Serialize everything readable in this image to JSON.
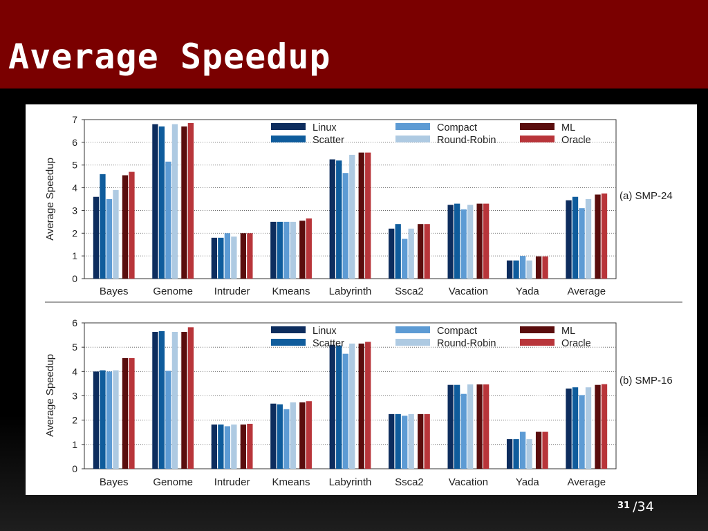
{
  "slide": {
    "title": "Average Speedup",
    "page_current": "31",
    "page_separator": "/",
    "page_total": "34"
  },
  "colors": {
    "header_bg": "#7a0000",
    "Linux": "#0d2d5e",
    "Scatter": "#0f5c9c",
    "Compact": "#5d9bd4",
    "Round-Robin": "#aecae2",
    "ML": "#5a0d0d",
    "Oracle": "#b8353a"
  },
  "chart_data": [
    {
      "type": "bar",
      "panel_label": "(a) SMP-24",
      "ylabel": "Average Speedup",
      "ylim": [
        0,
        7
      ],
      "yticks": [
        0,
        1,
        2,
        3,
        4,
        5,
        6,
        7
      ],
      "grid": "horizontal dotted",
      "legend_position": "top-center",
      "categories": [
        "Bayes",
        "Genome",
        "Intruder",
        "Kmeans",
        "Labyrinth",
        "Ssca2",
        "Vacation",
        "Yada",
        "Average"
      ],
      "series": [
        {
          "name": "Linux",
          "values": [
            3.6,
            6.8,
            1.8,
            2.5,
            5.25,
            2.2,
            3.25,
            0.8,
            3.45
          ]
        },
        {
          "name": "Scatter",
          "values": [
            4.6,
            6.7,
            1.8,
            2.5,
            5.2,
            2.4,
            3.3,
            0.8,
            3.6
          ]
        },
        {
          "name": "Compact",
          "values": [
            3.5,
            5.15,
            2.0,
            2.5,
            4.65,
            1.75,
            3.05,
            1.0,
            3.1
          ]
        },
        {
          "name": "Round-Robin",
          "values": [
            3.9,
            6.8,
            1.85,
            2.5,
            5.45,
            2.2,
            3.25,
            0.8,
            3.5
          ]
        },
        {
          "name": "ML",
          "values": [
            4.55,
            6.7,
            2.0,
            2.55,
            5.55,
            2.4,
            3.3,
            0.98,
            3.7
          ]
        },
        {
          "name": "Oracle",
          "values": [
            4.7,
            6.85,
            2.0,
            2.65,
            5.55,
            2.4,
            3.3,
            0.98,
            3.75
          ]
        }
      ]
    },
    {
      "type": "bar",
      "panel_label": "(b) SMP-16",
      "ylabel": "Average Speedup",
      "ylim": [
        0,
        6
      ],
      "yticks": [
        0,
        1,
        2,
        3,
        4,
        5,
        6
      ],
      "grid": "horizontal dotted",
      "legend_position": "top-center",
      "categories": [
        "Bayes",
        "Genome",
        "Intruder",
        "Kmeans",
        "Labyrinth",
        "Ssca2",
        "Vacation",
        "Yada",
        "Average"
      ],
      "series": [
        {
          "name": "Linux",
          "values": [
            4.0,
            5.63,
            1.82,
            2.68,
            5.1,
            2.25,
            3.45,
            1.22,
            3.3
          ]
        },
        {
          "name": "Scatter",
          "values": [
            4.05,
            5.66,
            1.82,
            2.65,
            5.07,
            2.25,
            3.45,
            1.22,
            3.35
          ]
        },
        {
          "name": "Compact",
          "values": [
            4.0,
            4.03,
            1.75,
            2.45,
            4.73,
            2.18,
            3.08,
            1.52,
            3.03
          ]
        },
        {
          "name": "Round-Robin",
          "values": [
            4.05,
            5.63,
            1.82,
            2.73,
            5.15,
            2.25,
            3.47,
            1.22,
            3.35
          ]
        },
        {
          "name": "ML",
          "values": [
            4.55,
            5.63,
            1.82,
            2.73,
            5.15,
            2.25,
            3.47,
            1.52,
            3.45
          ]
        },
        {
          "name": "Oracle",
          "values": [
            4.55,
            5.82,
            1.85,
            2.78,
            5.22,
            2.25,
            3.47,
            1.52,
            3.48
          ]
        }
      ]
    }
  ]
}
